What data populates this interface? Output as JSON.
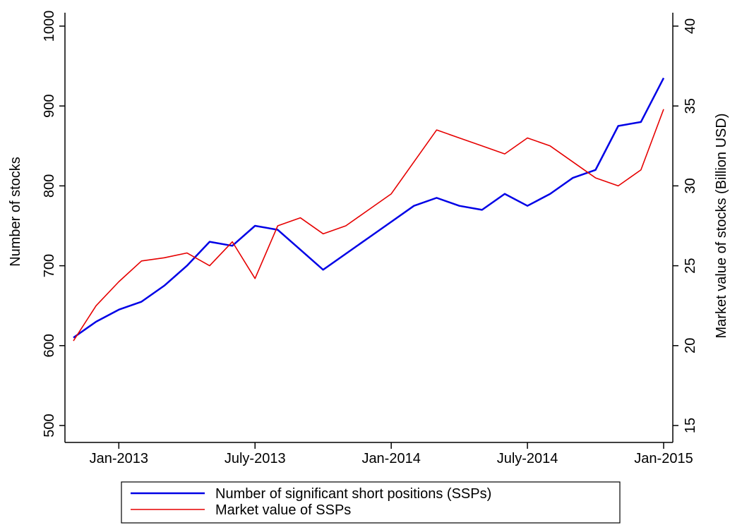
{
  "chart_data": {
    "type": "line",
    "x": [
      "2012-11",
      "2012-12",
      "2013-01",
      "2013-02",
      "2013-03",
      "2013-04",
      "2013-05",
      "2013-06",
      "2013-07",
      "2013-08",
      "2013-09",
      "2013-10",
      "2013-11",
      "2013-12",
      "2014-01",
      "2014-02",
      "2014-03",
      "2014-04",
      "2014-05",
      "2014-06",
      "2014-07",
      "2014-08",
      "2014-09",
      "2014-10",
      "2014-11",
      "2014-12",
      "2015-01"
    ],
    "series": [
      {
        "name": "Number of significant short positions (SSPs)",
        "color": "#0000e6",
        "axis": "y",
        "values": [
          610,
          630,
          645,
          655,
          675,
          700,
          730,
          725,
          750,
          745,
          720,
          695,
          715,
          735,
          755,
          775,
          785,
          775,
          770,
          790,
          775,
          790,
          810,
          820,
          875,
          880,
          935
        ]
      },
      {
        "name": "Market value of SSPs",
        "color": "#e60000",
        "axis": "y2",
        "values": [
          20.3,
          22.5,
          24.0,
          25.3,
          25.5,
          25.8,
          25.0,
          26.5,
          24.2,
          27.5,
          28.0,
          27.0,
          27.5,
          28.5,
          29.5,
          31.5,
          33.5,
          33.0,
          32.5,
          32.0,
          33.0,
          32.5,
          31.5,
          30.5,
          30.0,
          31.0,
          34.8
        ]
      }
    ],
    "xlim": [
      "2012-11",
      "2015-01"
    ],
    "xticks": [
      {
        "value": "2013-01",
        "label": "Jan-2013"
      },
      {
        "value": "2013-07",
        "label": "July-2013"
      },
      {
        "value": "2014-01",
        "label": "Jan-2014"
      },
      {
        "value": "2014-07",
        "label": "July-2014"
      },
      {
        "value": "2015-01",
        "label": "Jan-2015"
      }
    ],
    "ylim": [
      500,
      1000
    ],
    "yticks": [
      500,
      600,
      700,
      800,
      900,
      1000
    ],
    "y2lim": [
      15,
      40
    ],
    "y2ticks": [
      15,
      20,
      25,
      30,
      35,
      40
    ],
    "ylabel": "Number of stocks",
    "y2label": "Market value of stocks (Billion USD)",
    "grid": false
  }
}
